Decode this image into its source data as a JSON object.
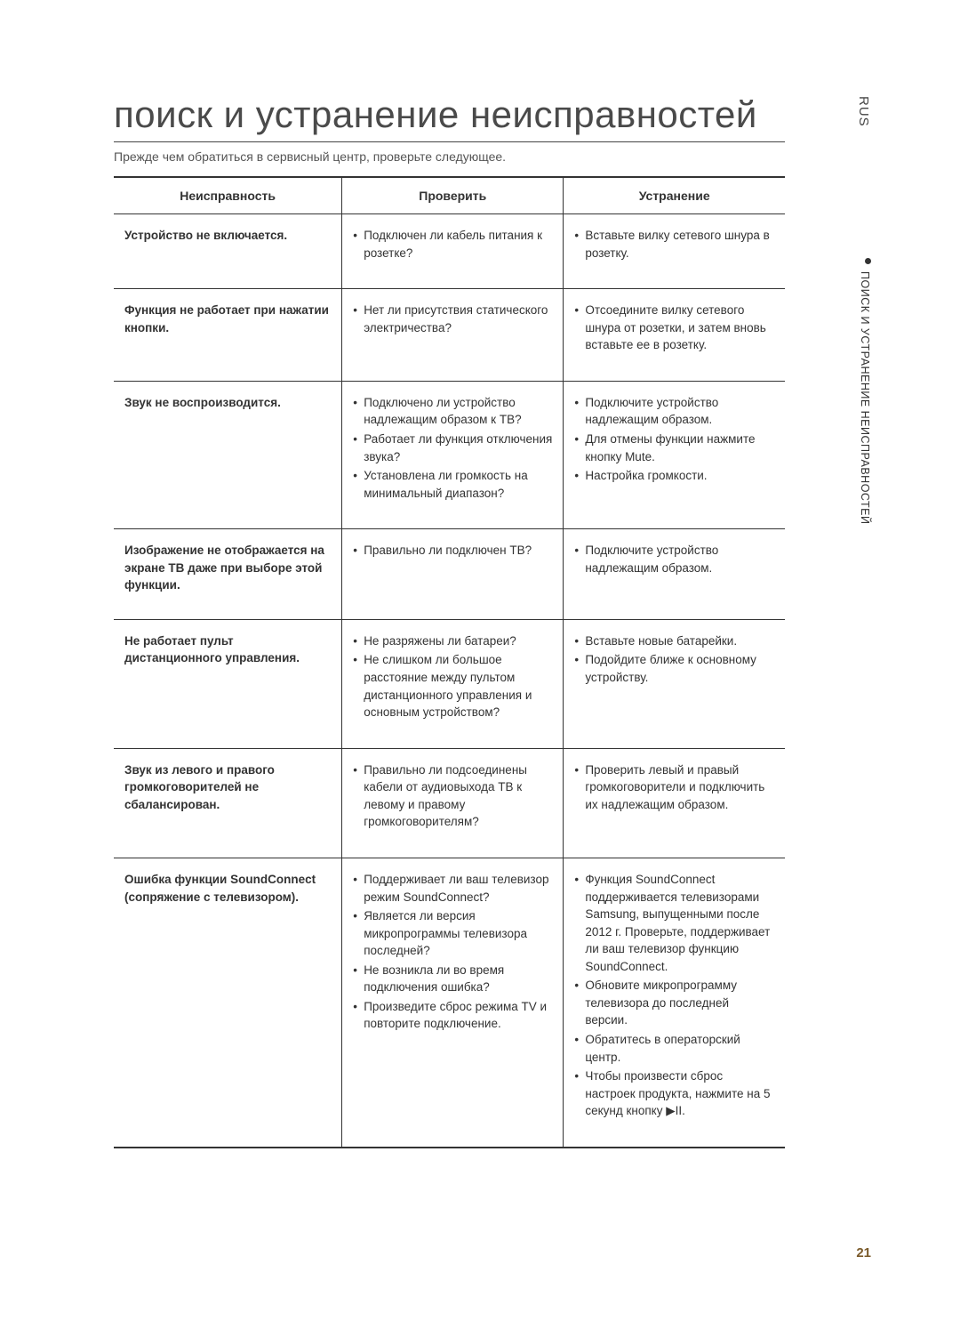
{
  "language_tab": "RUS",
  "side_section": "ПОИСК И УСТРАНЕНИЕ НЕИСПРАВНОСТЕЙ",
  "page_number": "21",
  "title": "поиск и устранение неисправностей",
  "subtitle": "Прежде чем обратиться в сервисный центр, проверьте следующее.",
  "headers": {
    "symptom": "Неисправность",
    "check": "Проверить",
    "remedy": "Устранение"
  },
  "rows": [
    {
      "symptom": "Устройство не включается.",
      "check": [
        "Подключен ли кабель питания к розетке?"
      ],
      "remedy": [
        "Вставьте вилку сетевого шнура в розетку."
      ]
    },
    {
      "symptom": "Функция не работает при нажатии кнопки.",
      "check": [
        "Нет ли присутствия статического электричества?"
      ],
      "remedy": [
        "Отсоедините вилку сетевого шнура от розетки, и затем вновь вставьте ее в розетку."
      ]
    },
    {
      "symptom": "Звук не воспроизводится.",
      "check": [
        "Подключено ли устройство надлежащим образом к ТВ?",
        "Работает ли функция отключения звука?",
        "Установлена ли громкость на минимальный диапазон?"
      ],
      "remedy": [
        "Подключите устройство надлежащим образом.",
        "Для отмены функции нажмите кнопку Mute.",
        "Настройка громкости."
      ]
    },
    {
      "symptom": "Изображение не отображается на экране ТВ даже при выборе этой функции.",
      "check": [
        "Правильно ли подключен ТВ?"
      ],
      "remedy": [
        "Подключите устройство надлежащим образом."
      ]
    },
    {
      "symptom": "Не работает пульт дистанционного управления.",
      "check": [
        "Не разряжены ли батареи?",
        "Не слишком ли большое расстояние между пультом дистанционного управления и основным устройством?"
      ],
      "remedy": [
        "Вставьте новые батарейки.",
        "Подойдите ближе к основному устройству."
      ]
    },
    {
      "symptom": "Звук из левого и правого громкоговорителей не сбалансирован.",
      "check": [
        "Правильно ли подсоединены кабели от аудиовыхода ТВ к левому и правому громкоговорителям?"
      ],
      "remedy": [
        "Проверить левый и правый громкоговорители и подключить их надлежащим образом."
      ]
    },
    {
      "symptom": "Ошибка функции SoundConnect (сопряжение с телевизором).",
      "check": [
        "Поддерживает ли ваш телевизор режим SoundConnect?",
        "Является ли версия микропрограммы телевизора последней?",
        "Не возникла ли во время подключения ошибка?",
        "Произведите сброс режима TV и повторите подключение."
      ],
      "remedy": [
        "Функция SoundConnect поддерживается телевизорами Samsung, выпущенными после 2012 г. Проверьте, поддерживает ли ваш телевизор функцию SoundConnect.",
        "Обновите микропрограмму телевизора до последней версии.",
        "Обратитесь в операторский центр.",
        "Чтобы произвести сброс настроек продукта, нажмите на 5 секунд кнопку ▶II."
      ]
    }
  ]
}
